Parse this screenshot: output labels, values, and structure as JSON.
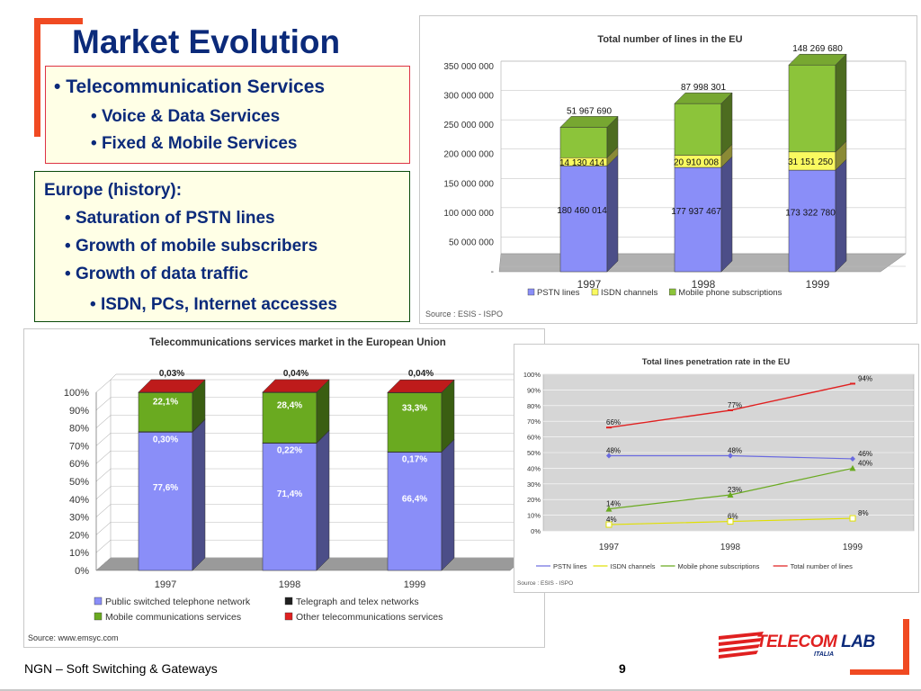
{
  "slide": {
    "title": "Market Evolution",
    "box1": {
      "heading": "Telecommunication Services",
      "items": [
        "Voice & Data Services",
        "Fixed & Mobile Services"
      ]
    },
    "box2": {
      "heading": "Europe (history):",
      "items": [
        "Saturation of PSTN lines",
        "Growth of mobile subscribers",
        "Growth of data traffic"
      ],
      "subitem": "ISDN, PCs, Internet accesses"
    },
    "footer": {
      "left": "NGN – Soft Switching & Gateways",
      "page": "9"
    },
    "logo": {
      "main": "TELECOM",
      "accent": "LAB",
      "sub": "ITALIA"
    },
    "colors": {
      "title": "#0b2a7a",
      "accent": "#f04a22",
      "pstn": "#8080ff",
      "isdn": "#ffff80",
      "mobile": "#80c020",
      "other": "#e02020",
      "total": "#e02020"
    }
  },
  "chart_data": [
    {
      "type": "bar",
      "stacked": true,
      "title": "Total number of lines in the EU",
      "categories": [
        "1997",
        "1998",
        "1999"
      ],
      "series": [
        {
          "name": "PSTN lines",
          "values": [
            180460014,
            177937467,
            173322780
          ],
          "labels": [
            "180 460 014",
            "177 937 467",
            "173 322 780"
          ],
          "color": "#8a8ef8"
        },
        {
          "name": "ISDN channels",
          "values": [
            14130414,
            20910008,
            31151250
          ],
          "labels": [
            "14 130 414",
            "20 910 008",
            "31 151 250"
          ],
          "color": "#fafa60"
        },
        {
          "name": "Mobile phone subscriptions",
          "values": [
            51967690,
            87998301,
            148269680
          ],
          "labels": [
            "51 967 690",
            "87 998 301",
            "148 269 680"
          ],
          "color": "#8cc43a"
        }
      ],
      "yticks": [
        "350 000 000",
        "300 000 000",
        "250 000 000",
        "200 000 000",
        "150 000 000",
        "100 000 000",
        "50 000 000",
        "-"
      ],
      "ytick_values": [
        350000000,
        300000000,
        250000000,
        200000000,
        150000000,
        100000000,
        50000000,
        0
      ],
      "ylim": [
        0,
        350000000
      ],
      "source": "Source : ESIS - ISPO",
      "legend": "bottom"
    },
    {
      "type": "bar",
      "stacked": true,
      "title": "Telecommunications services market in the European Union",
      "categories": [
        "1997",
        "1998",
        "1999"
      ],
      "series": [
        {
          "name": "Public switched telephone network",
          "values": [
            77.6,
            71.4,
            66.4
          ],
          "labels": [
            "77,6%",
            "71,4%",
            "66,4%"
          ],
          "color": "#8a8ef8"
        },
        {
          "name": "Telegraph and telex networks",
          "values": [
            0.3,
            0.22,
            0.17
          ],
          "labels": [
            "0,30%",
            "0,22%",
            "0,17%"
          ],
          "color": "#202020"
        },
        {
          "name": "Mobile communications services",
          "values": [
            22.1,
            28.4,
            33.3
          ],
          "labels": [
            "22,1%",
            "28,4%",
            "33,3%"
          ],
          "color": "#6aaa20"
        },
        {
          "name": "Other telecommunications services",
          "values": [
            0.03,
            0.04,
            0.04
          ],
          "labels": [
            "0,03%",
            "0,04%",
            "0,04%"
          ],
          "color": "#e02020"
        }
      ],
      "yticks": [
        "100%",
        "90%",
        "80%",
        "70%",
        "60%",
        "50%",
        "40%",
        "30%",
        "20%",
        "10%",
        "0%"
      ],
      "ytick_values": [
        100,
        90,
        80,
        70,
        60,
        50,
        40,
        30,
        20,
        10,
        0
      ],
      "ylim": [
        0,
        100
      ],
      "source": "Source: www.emsyc.com",
      "legend": "bottom"
    },
    {
      "type": "line",
      "title": "Total lines penetration rate in the EU",
      "categories": [
        "1997",
        "1998",
        "1999"
      ],
      "series": [
        {
          "name": "PSTN lines",
          "values": [
            48,
            48,
            46
          ],
          "labels": [
            "48%",
            "48%",
            "46%"
          ],
          "color": "#6a6ae0",
          "marker": "diamond"
        },
        {
          "name": "ISDN channels",
          "values": [
            4,
            6,
            8
          ],
          "labels": [
            "4%",
            "6%",
            "8%"
          ],
          "color": "#e0e000",
          "marker": "square"
        },
        {
          "name": "Mobile phone subscriptions",
          "values": [
            14,
            23,
            40
          ],
          "labels": [
            "14%",
            "23%",
            "40%"
          ],
          "color": "#6aaa20",
          "marker": "triangle"
        },
        {
          "name": "Total number of lines",
          "values": [
            66,
            77,
            94
          ],
          "labels": [
            "66%",
            "77%",
            "94%"
          ],
          "color": "#e02020",
          "marker": "dash"
        }
      ],
      "yticks": [
        "100%",
        "90%",
        "80%",
        "70%",
        "60%",
        "50%",
        "40%",
        "30%",
        "20%",
        "10%",
        "0%"
      ],
      "ytick_values": [
        100,
        90,
        80,
        70,
        60,
        50,
        40,
        30,
        20,
        10,
        0
      ],
      "ylim": [
        0,
        100
      ],
      "source": "Source : ESIS - ISPO",
      "legend": "bottom"
    }
  ]
}
